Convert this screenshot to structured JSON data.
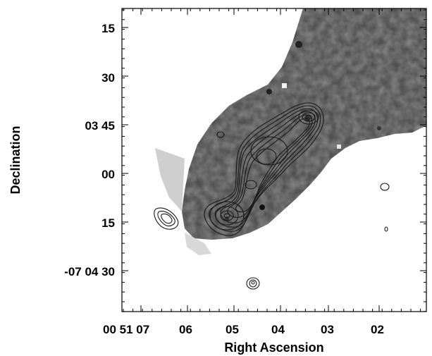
{
  "figure": {
    "xlabel": "Right Ascension",
    "ylabel": "Declination",
    "x_ticks": [
      "00 51 07",
      "06",
      "05",
      "04",
      "03",
      "02"
    ],
    "y_ticks": [
      "15",
      "30",
      "03 45",
      "00",
      "15",
      "-07 04 30"
    ]
  },
  "colors": {
    "frame": "#000000",
    "contour": "#1a1a1a",
    "background": "#ffffff"
  }
}
